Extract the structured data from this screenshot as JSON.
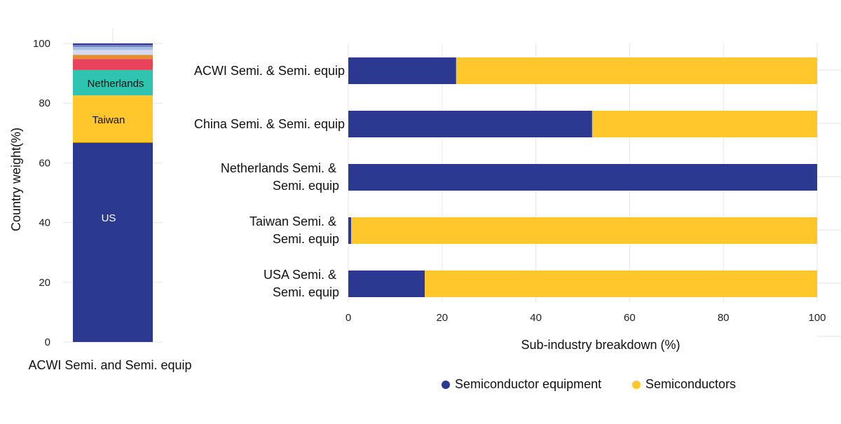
{
  "chart_data": [
    {
      "type": "bar",
      "stacked": true,
      "ylabel": "Country weight(%)",
      "xlabel": "ACWI Semi. and Semi. equip",
      "ylim": [
        0,
        100
      ],
      "yticks": [
        0,
        20,
        40,
        60,
        80,
        100
      ],
      "grid": true,
      "segments": [
        {
          "name": "US",
          "value": 66.8,
          "color": "#2b3990",
          "label": "US",
          "label_color": "#ffffff"
        },
        {
          "name": "Taiwan",
          "value": 15.8,
          "color": "#ffc72c",
          "label": "Taiwan",
          "label_color": "#111111"
        },
        {
          "name": "Netherlands",
          "value": 8.6,
          "color": "#2ec4b0",
          "label": "Netherlands",
          "label_color": "#111111"
        },
        {
          "name": "",
          "value": 3.6,
          "color": "#e8435a",
          "label": "",
          "label_color": "#111111"
        },
        {
          "name": "",
          "value": 1.4,
          "color": "#ec8b2e",
          "label": "",
          "label_color": "#111111"
        },
        {
          "name": "",
          "value": 1.6,
          "color": "#d8dce8",
          "label": "",
          "label_color": "#111111"
        },
        {
          "name": "",
          "value": 1.0,
          "color": "#a9bfe0",
          "label": "",
          "label_color": "#111111"
        },
        {
          "name": "",
          "value": 0.7,
          "color": "#6f86c0",
          "label": "",
          "label_color": "#111111"
        },
        {
          "name": "",
          "value": 0.5,
          "color": "#2b3990",
          "label": "",
          "label_color": "#111111"
        }
      ]
    },
    {
      "type": "bar",
      "orientation": "horizontal",
      "stacked": true,
      "xlabel": "Sub-industry breakdown (%)",
      "xlim": [
        0,
        100
      ],
      "xticks": [
        0,
        20,
        40,
        60,
        80,
        100
      ],
      "grid": true,
      "legend": "bottom",
      "categories": [
        [
          "ACWI Semi. & Semi. equip"
        ],
        [
          "China Semi. & Semi. equip"
        ],
        [
          "Netherlands Semi. &",
          "Semi. equip"
        ],
        [
          "Taiwan Semi. &",
          "Semi. equip"
        ],
        [
          "USA Semi. &",
          "Semi. equip"
        ]
      ],
      "series": [
        {
          "name": "Semiconductor equipment",
          "color": "#2b3990",
          "values": [
            23,
            52,
            100,
            0.6,
            16.3
          ]
        },
        {
          "name": "Semiconductors",
          "color": "#ffc72c",
          "values": [
            77,
            48,
            0,
            99.4,
            83.7
          ]
        }
      ]
    }
  ]
}
